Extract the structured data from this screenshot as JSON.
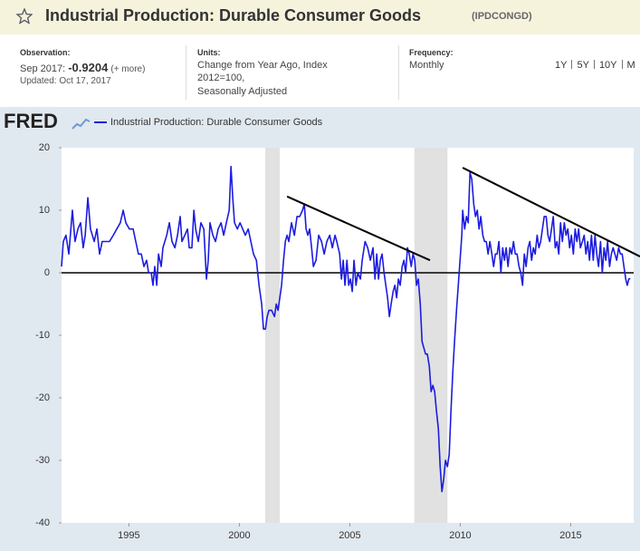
{
  "header": {
    "title": "Industrial Production: Durable Consumer Goods",
    "series_id": "(IPDCONGD)"
  },
  "observation": {
    "label": "Observation:",
    "date": "Sep 2017:",
    "value": -0.9204,
    "more": "(+ more)",
    "updated": "Updated: Oct 17, 2017"
  },
  "units": {
    "label": "Units:",
    "lines": [
      "Change from Year Ago, Index",
      "2012=100,",
      "Seasonally Adjusted"
    ]
  },
  "frequency": {
    "label": "Frequency:",
    "value": "Monthly"
  },
  "ranges": [
    "1Y",
    "5Y",
    "10Y",
    "M"
  ],
  "logo": "FRED",
  "chart_data": {
    "type": "line",
    "x": [
      1991.95,
      1992.03,
      1992.15,
      1992.28,
      1992.44,
      1992.56,
      1992.69,
      1992.81,
      1992.93,
      1993.02,
      1993.14,
      1993.26,
      1993.43,
      1993.55,
      1993.67,
      1993.79,
      1993.96,
      1994.12,
      1994.29,
      1994.45,
      1994.61,
      1994.74,
      1994.86,
      1995.02,
      1995.19,
      1995.31,
      1995.43,
      1995.56,
      1995.68,
      1995.8,
      1995.89,
      1996.01,
      1996.09,
      1996.17,
      1996.26,
      1996.34,
      1996.46,
      1996.54,
      1996.71,
      1996.83,
      1996.95,
      1997.08,
      1997.2,
      1997.32,
      1997.4,
      1997.53,
      1997.65,
      1997.73,
      1997.85,
      1997.94,
      1998.02,
      1998.14,
      1998.26,
      1998.39,
      1998.51,
      1998.59,
      1998.67,
      1998.8,
      1998.92,
      1999.04,
      1999.17,
      1999.29,
      1999.41,
      1999.54,
      1999.62,
      1999.7,
      1999.78,
      1999.91,
      2000.03,
      2000.15,
      2000.27,
      2000.4,
      2000.52,
      2000.64,
      2000.77,
      2000.89,
      2001.01,
      2001.09,
      2001.18,
      2001.26,
      2001.34,
      2001.46,
      2001.59,
      2001.67,
      2001.75,
      2001.83,
      2001.91,
      2002.0,
      2002.08,
      2002.16,
      2002.24,
      2002.36,
      2002.49,
      2002.61,
      2002.73,
      2002.86,
      2002.94,
      2003.02,
      2003.1,
      2003.18,
      2003.27,
      2003.35,
      2003.47,
      2003.59,
      2003.72,
      2003.84,
      2003.96,
      2004.09,
      2004.21,
      2004.33,
      2004.41,
      2004.54,
      2004.62,
      2004.7,
      2004.78,
      2004.87,
      2004.95,
      2005.03,
      2005.11,
      2005.19,
      2005.28,
      2005.36,
      2005.48,
      2005.56,
      2005.69,
      2005.81,
      2005.93,
      2006.05,
      2006.14,
      2006.22,
      2006.3,
      2006.38,
      2006.46,
      2006.55,
      2006.63,
      2006.71,
      2006.79,
      2006.87,
      2006.96,
      2007.04,
      2007.12,
      2007.2,
      2007.28,
      2007.37,
      2007.45,
      2007.53,
      2007.61,
      2007.69,
      2007.78,
      2007.86,
      2007.94,
      2008.02,
      2008.1,
      2008.19,
      2008.27,
      2008.35,
      2008.43,
      2008.51,
      2008.6,
      2008.68,
      2008.76,
      2008.84,
      2008.92,
      2009.01,
      2009.09,
      2009.17,
      2009.25,
      2009.33,
      2009.42,
      2009.5,
      2009.58,
      2009.66,
      2009.74,
      2009.83,
      2009.91,
      2009.99,
      2010.07,
      2010.11,
      2010.2,
      2010.28,
      2010.36,
      2010.44,
      2010.52,
      2010.61,
      2010.69,
      2010.77,
      2010.85,
      2010.93,
      2011.02,
      2011.1,
      2011.18,
      2011.26,
      2011.34,
      2011.43,
      2011.51,
      2011.59,
      2011.67,
      2011.75,
      2011.84,
      2011.92,
      2012.0,
      2012.08,
      2012.16,
      2012.25,
      2012.33,
      2012.41,
      2012.49,
      2012.57,
      2012.66,
      2012.74,
      2012.82,
      2012.9,
      2012.98,
      2013.07,
      2013.15,
      2013.23,
      2013.31,
      2013.39,
      2013.48,
      2013.56,
      2013.64,
      2013.72,
      2013.8,
      2013.89,
      2013.97,
      2014.05,
      2014.13,
      2014.21,
      2014.3,
      2014.38,
      2014.46,
      2014.54,
      2014.62,
      2014.71,
      2014.79,
      2014.87,
      2014.95,
      2015.03,
      2015.12,
      2015.2,
      2015.28,
      2015.36,
      2015.44,
      2015.53,
      2015.61,
      2015.69,
      2015.77,
      2015.85,
      2015.94,
      2016.02,
      2016.1,
      2016.18,
      2016.26,
      2016.35,
      2016.43,
      2016.51,
      2016.59,
      2016.67,
      2016.76,
      2016.84,
      2016.92,
      2017.0,
      2017.08,
      2017.17,
      2017.25,
      2017.33,
      2017.41,
      2017.49,
      2017.56,
      2017.63,
      2017.7
    ],
    "series": [
      {
        "name": "Industrial Production: Durable Consumer Goods",
        "color": "#1c1ce0",
        "values": [
          1,
          5,
          6,
          3,
          10,
          5,
          7,
          8,
          4,
          6,
          12,
          7,
          5,
          7,
          3,
          5,
          5,
          5,
          6,
          7,
          8,
          10,
          8,
          7,
          7,
          5,
          3,
          3,
          1,
          2,
          0,
          0,
          -2,
          1,
          -2,
          3,
          1,
          4,
          6,
          8,
          5,
          4,
          6,
          9,
          5,
          6,
          7,
          4,
          4,
          10,
          7,
          5,
          8,
          7,
          -1,
          2,
          8,
          6,
          5,
          7,
          8,
          6,
          8,
          10,
          17,
          12,
          8,
          7,
          8,
          7,
          6,
          7,
          5,
          3,
          2,
          -2,
          -5,
          -9,
          -9,
          -7,
          -6,
          -6,
          -7,
          -5,
          -6,
          -4,
          -2,
          2,
          5,
          6,
          5,
          8,
          6,
          9,
          9,
          10,
          11,
          7,
          6,
          7,
          4,
          1,
          2,
          6,
          5,
          3,
          5,
          6,
          4,
          6,
          5,
          3,
          -1,
          2,
          -2,
          2,
          -2,
          -1,
          -3,
          2,
          -2,
          0,
          -1,
          2,
          5,
          4,
          2,
          4,
          -1,
          3,
          -1,
          2,
          3,
          0,
          -2,
          -4,
          -7,
          -5,
          -3,
          -2,
          -4,
          -1,
          -2,
          1,
          2,
          0,
          4,
          3,
          1,
          3,
          2,
          -2,
          -1,
          -5,
          -11,
          -12,
          -13,
          -13,
          -15,
          -19,
          -18,
          -19,
          -22,
          -25,
          -31,
          -35,
          -33,
          -30,
          -31,
          -29,
          -22,
          -16,
          -11,
          -6,
          -2,
          2,
          6,
          10,
          7,
          9,
          8,
          16,
          15,
          11,
          9,
          10,
          7,
          9,
          6,
          5,
          5,
          3,
          5,
          3,
          1,
          3,
          3,
          5,
          0,
          4,
          2,
          4,
          1,
          4,
          3,
          5,
          3,
          3,
          1,
          0,
          -2,
          3,
          1,
          4,
          5,
          2,
          4,
          3,
          6,
          4,
          5,
          7,
          9,
          9,
          6,
          5,
          7,
          9,
          4,
          5,
          3,
          8,
          5,
          8,
          6,
          7,
          4,
          6,
          3,
          7,
          5,
          7,
          4,
          5,
          6,
          3,
          5,
          2,
          6,
          2,
          6,
          3,
          1,
          5,
          0,
          4,
          2,
          5,
          1,
          3,
          4,
          3,
          2,
          4,
          3,
          3,
          1,
          -1,
          -2,
          -1,
          -0.9204
        ]
      }
    ],
    "xlim": [
      1991.95,
      2017.85
    ],
    "xticks": [
      1995,
      2000,
      2005,
      2010,
      2015
    ],
    "ylim": [
      -40,
      20
    ],
    "yticks": [
      -40,
      -30,
      -20,
      -10,
      0,
      10,
      20
    ],
    "zero_line": 0,
    "recessions": [
      [
        2001.17,
        2001.83
      ],
      [
        2007.92,
        2009.42
      ]
    ],
    "annotations": [
      {
        "x": [
          2002.16,
          2008.63
        ],
        "y": [
          12.2,
          2.0
        ]
      },
      {
        "x": [
          2010.11,
          2018.14
        ],
        "y": [
          16.8,
          2.6
        ]
      }
    ],
    "recession_color": "#e1e1e1",
    "annotation_color": "#000000",
    "grid": false
  }
}
